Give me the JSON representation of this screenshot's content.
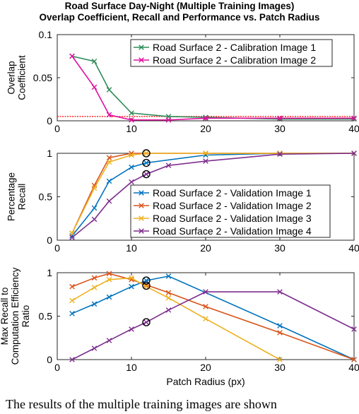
{
  "title": [
    "Road Surface Day-Night (Multiple Training Images)",
    "Overlap Coefficient, Recall and Performance vs. Patch Radius"
  ],
  "caption": "The results of the multiple training images are shown",
  "colors": {
    "green": "#2e8b57",
    "magenta": "#e0119d",
    "blue": "#0072bd",
    "orange": "#d95319",
    "yellow": "#edb120",
    "purple": "#7e2f8e",
    "threshold": "#ff0000",
    "highlight": "#000000"
  },
  "chart_data": [
    {
      "type": "line",
      "ylabel": [
        "Overlap",
        "Coefficient"
      ],
      "xlabel": "",
      "xlim": [
        0,
        40
      ],
      "ylim": [
        0,
        0.1
      ],
      "xticks": [
        0,
        10,
        20,
        30,
        40
      ],
      "xtick_labels": [
        "0",
        "10",
        "20",
        "30",
        "40"
      ],
      "yticks": [
        0,
        0.05,
        0.1
      ],
      "ytick_labels": [
        "0",
        "0.05",
        "0.1"
      ],
      "legend_position": "top-right",
      "threshold_line": 0.005,
      "series": [
        {
          "name": "Road Surface 2 - Calibration Image 1",
          "color": "green",
          "marker": "x",
          "x": [
            2,
            5,
            7,
            10,
            15,
            20,
            30,
            40
          ],
          "y": [
            0.075,
            0.069,
            0.036,
            0.009,
            0.005,
            0.004,
            0.002,
            0.002
          ]
        },
        {
          "name": "Road Surface 2 - Calibration Image 2",
          "color": "magenta",
          "marker": "x",
          "x": [
            2,
            5,
            7,
            10,
            15,
            20,
            30,
            40
          ],
          "y": [
            0.075,
            0.039,
            0.007,
            0.001,
            0.001,
            0.003,
            0.003,
            0.003
          ]
        }
      ]
    },
    {
      "type": "line",
      "ylabel": [
        "Percentage",
        "Recall"
      ],
      "xlabel": "",
      "xlim": [
        0,
        40
      ],
      "ylim": [
        0,
        1
      ],
      "xticks": [
        0,
        10,
        20,
        30,
        40
      ],
      "xtick_labels": [
        "0",
        "10",
        "20",
        "30",
        "40"
      ],
      "yticks": [
        0,
        0.5,
        1
      ],
      "ytick_labels": [
        "0",
        "0.5",
        "1"
      ],
      "legend_position": "bottom-right",
      "series": [
        {
          "name": "Road Surface 2 - Validation Image 1",
          "color": "blue",
          "marker": "x",
          "x": [
            2,
            5,
            7,
            10,
            12,
            20,
            30,
            40
          ],
          "y": [
            0.05,
            0.37,
            0.68,
            0.84,
            0.89,
            0.98,
            1.0,
            1.0
          ]
        },
        {
          "name": "Road Surface 2 - Validation Image 2",
          "color": "orange",
          "marker": "x",
          "x": [
            2,
            5,
            7,
            10,
            12,
            20,
            30,
            40
          ],
          "y": [
            0.08,
            0.63,
            0.95,
            1.0,
            1.0,
            1.0,
            1.0,
            1.0
          ]
        },
        {
          "name": "Road Surface 2 - Validation Image 3",
          "color": "yellow",
          "marker": "x",
          "x": [
            2,
            5,
            7,
            10,
            12,
            20,
            30,
            40
          ],
          "y": [
            0.08,
            0.6,
            0.9,
            0.98,
            1.0,
            1.0,
            1.0,
            1.0
          ]
        },
        {
          "name": "Road Surface 2 - Validation Image 4",
          "color": "purple",
          "marker": "x",
          "x": [
            2,
            5,
            7,
            10,
            12,
            15,
            20,
            30,
            40
          ],
          "y": [
            0.03,
            0.24,
            0.45,
            0.67,
            0.76,
            0.86,
            0.91,
            0.99,
            1.0
          ]
        }
      ],
      "highlights": [
        {
          "x": 12,
          "y": 1.0
        },
        {
          "x": 12,
          "y": 0.89
        },
        {
          "x": 12,
          "y": 0.76
        }
      ]
    },
    {
      "type": "line",
      "ylabel": [
        "Max Recall to",
        "Computation Efficiency",
        "Ratio"
      ],
      "xlabel": "Patch Radius (px)",
      "xlim": [
        0,
        40
      ],
      "ylim": [
        0,
        1
      ],
      "xticks": [
        0,
        10,
        20,
        30,
        40
      ],
      "xtick_labels": [
        "0",
        "10",
        "20",
        "30",
        "40"
      ],
      "yticks": [
        0,
        0.5,
        1
      ],
      "ytick_labels": [
        "0",
        "0.5",
        "1"
      ],
      "series": [
        {
          "name": "Road Surface 2 - Validation Image 1",
          "color": "blue",
          "marker": "x",
          "x": [
            2,
            5,
            7,
            10,
            12,
            15,
            30,
            40
          ],
          "y": [
            0.53,
            0.64,
            0.72,
            0.84,
            0.91,
            0.96,
            0.39,
            0.0
          ]
        },
        {
          "name": "Road Surface 2 - Validation Image 2",
          "color": "orange",
          "marker": "x",
          "x": [
            2,
            5,
            7,
            10,
            12,
            15,
            20,
            30,
            40
          ],
          "y": [
            0.84,
            0.94,
            0.99,
            0.92,
            0.86,
            0.77,
            0.61,
            0.31,
            0.0
          ]
        },
        {
          "name": "Road Surface 2 - Validation Image 3",
          "color": "yellow",
          "marker": "x",
          "x": [
            2,
            5,
            7,
            10,
            12,
            15,
            20,
            30
          ],
          "y": [
            0.68,
            0.83,
            0.92,
            0.94,
            0.84,
            0.71,
            0.47,
            0.0
          ]
        },
        {
          "name": "Road Surface 2 - Validation Image 4",
          "color": "purple",
          "marker": "x",
          "x": [
            2,
            5,
            7,
            10,
            12,
            15,
            20,
            30,
            40
          ],
          "y": [
            0.0,
            0.13,
            0.22,
            0.35,
            0.43,
            0.57,
            0.78,
            0.78,
            0.35
          ]
        }
      ],
      "highlights": [
        {
          "x": 12,
          "y": 0.91
        },
        {
          "x": 12,
          "y": 0.85
        },
        {
          "x": 12,
          "y": 0.43
        }
      ]
    }
  ]
}
